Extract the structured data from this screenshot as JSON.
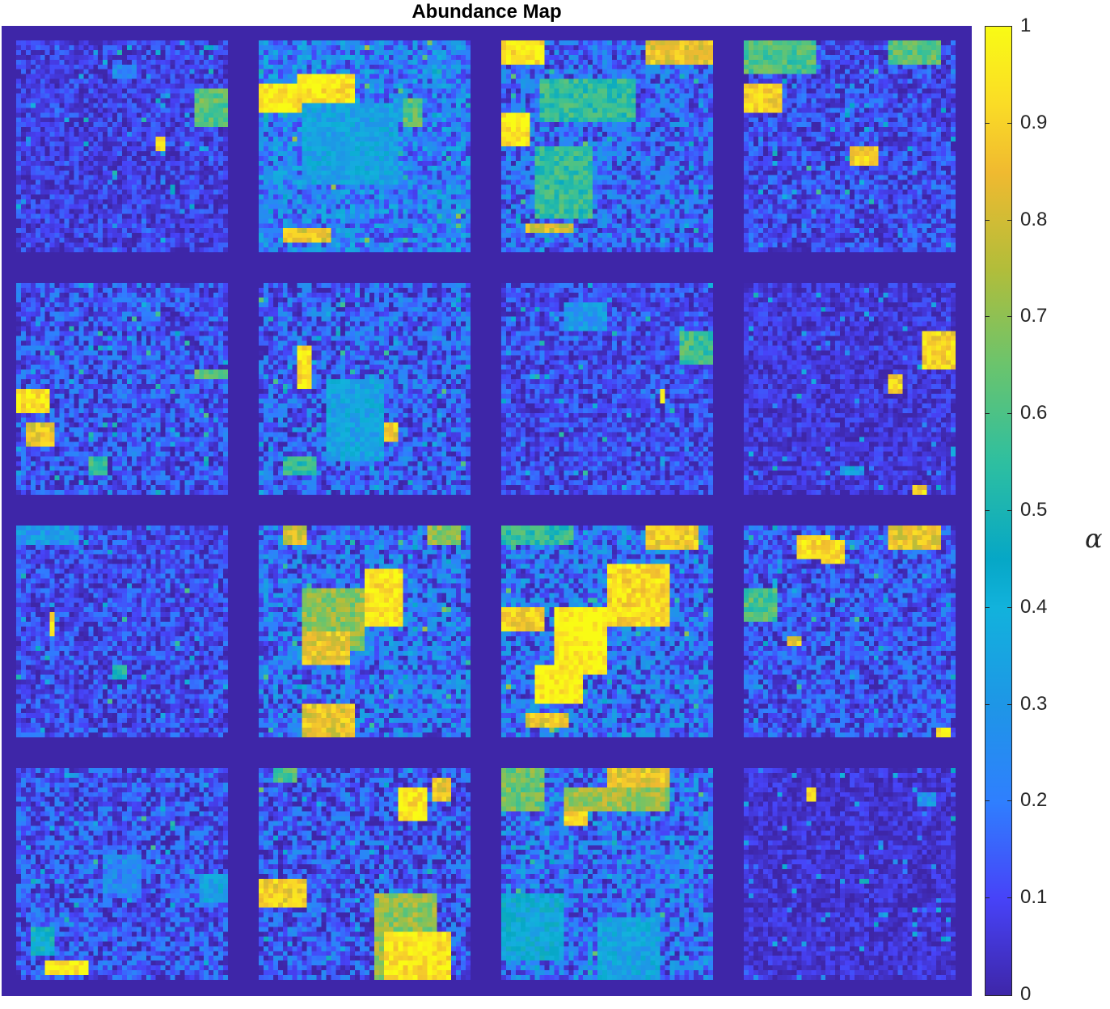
{
  "chart_data": {
    "type": "heatmap",
    "title": "Abundance Map",
    "layout": {
      "rows": 4,
      "cols": 4
    },
    "colormap": "parula",
    "clim": [
      0,
      1
    ],
    "colorbar": {
      "ticks": [
        0,
        0.1,
        0.2,
        0.3,
        0.4,
        0.5,
        0.6,
        0.7,
        0.8,
        0.9,
        1
      ],
      "tick_labels": [
        "0",
        "0.1",
        "0.2",
        "0.3",
        "0.4",
        "0.5",
        "0.6",
        "0.7",
        "0.8",
        "0.9",
        "1"
      ],
      "label": "α",
      "position": "right"
    },
    "background_value": 0,
    "tiles": [
      {
        "id": 1,
        "base": 0.08,
        "noise": 0.1,
        "patches": [
          [
            0.84,
            0.23,
            0.16,
            0.17,
            0.62
          ],
          [
            0.66,
            0.45,
            0.05,
            0.08,
            0.9
          ],
          [
            0.46,
            0.12,
            0.1,
            0.06,
            0.25
          ]
        ]
      },
      {
        "id": 2,
        "base": 0.22,
        "noise": 0.18,
        "patches": [
          [
            0.0,
            0.2,
            0.4,
            0.15,
            0.95
          ],
          [
            0.18,
            0.16,
            0.28,
            0.16,
            0.95
          ],
          [
            0.5,
            0.5,
            0.14,
            0.14,
            0.95
          ],
          [
            0.2,
            0.3,
            0.45,
            0.38,
            0.35
          ],
          [
            0.68,
            0.28,
            0.1,
            0.12,
            0.62
          ],
          [
            0.12,
            0.88,
            0.22,
            0.08,
            0.85
          ]
        ]
      },
      {
        "id": 3,
        "base": 0.16,
        "noise": 0.16,
        "patches": [
          [
            0.0,
            0.0,
            0.2,
            0.12,
            0.95
          ],
          [
            0.0,
            0.33,
            0.14,
            0.18,
            0.95
          ],
          [
            0.68,
            0.0,
            0.32,
            0.12,
            0.85
          ],
          [
            0.18,
            0.18,
            0.45,
            0.2,
            0.55
          ],
          [
            0.16,
            0.5,
            0.28,
            0.33,
            0.55
          ],
          [
            0.12,
            0.86,
            0.22,
            0.05,
            0.8
          ]
        ]
      },
      {
        "id": 4,
        "base": 0.1,
        "noise": 0.12,
        "patches": [
          [
            0.0,
            0.2,
            0.18,
            0.15,
            0.9
          ],
          [
            0.5,
            0.5,
            0.14,
            0.08,
            0.88
          ],
          [
            0.0,
            0.0,
            0.35,
            0.15,
            0.6
          ],
          [
            0.68,
            0.0,
            0.26,
            0.12,
            0.62
          ]
        ]
      },
      {
        "id": 5,
        "base": 0.12,
        "noise": 0.14,
        "patches": [
          [
            0.0,
            0.5,
            0.16,
            0.11,
            0.95
          ],
          [
            0.04,
            0.66,
            0.14,
            0.11,
            0.85
          ],
          [
            0.84,
            0.42,
            0.16,
            0.04,
            0.6
          ],
          [
            0.34,
            0.82,
            0.1,
            0.08,
            0.55
          ]
        ]
      },
      {
        "id": 6,
        "base": 0.14,
        "noise": 0.16,
        "patches": [
          [
            0.18,
            0.3,
            0.07,
            0.2,
            0.95
          ],
          [
            0.4,
            0.68,
            0.1,
            0.12,
            0.92
          ],
          [
            0.52,
            0.66,
            0.14,
            0.1,
            0.88
          ],
          [
            0.32,
            0.45,
            0.28,
            0.4,
            0.35
          ],
          [
            0.12,
            0.82,
            0.16,
            0.1,
            0.55
          ]
        ]
      },
      {
        "id": 7,
        "base": 0.1,
        "noise": 0.11,
        "patches": [
          [
            0.84,
            0.22,
            0.16,
            0.16,
            0.58
          ],
          [
            0.74,
            0.5,
            0.04,
            0.06,
            0.9
          ],
          [
            0.3,
            0.1,
            0.2,
            0.12,
            0.3
          ]
        ]
      },
      {
        "id": 8,
        "base": 0.06,
        "noise": 0.08,
        "patches": [
          [
            0.84,
            0.22,
            0.16,
            0.2,
            0.9
          ],
          [
            0.68,
            0.44,
            0.06,
            0.08,
            0.9
          ],
          [
            0.8,
            0.96,
            0.06,
            0.04,
            0.9
          ],
          [
            0.46,
            0.86,
            0.1,
            0.06,
            0.35
          ]
        ]
      },
      {
        "id": 9,
        "base": 0.1,
        "noise": 0.12,
        "patches": [
          [
            0.16,
            0.42,
            0.03,
            0.1,
            0.9
          ],
          [
            0.46,
            0.66,
            0.06,
            0.06,
            0.5
          ],
          [
            0.0,
            0.0,
            0.3,
            0.08,
            0.3
          ]
        ]
      },
      {
        "id": 10,
        "base": 0.18,
        "noise": 0.18,
        "patches": [
          [
            0.5,
            0.2,
            0.18,
            0.28,
            0.95
          ],
          [
            0.2,
            0.3,
            0.3,
            0.28,
            0.7
          ],
          [
            0.2,
            0.5,
            0.24,
            0.16,
            0.85
          ],
          [
            0.2,
            0.85,
            0.26,
            0.15,
            0.85
          ],
          [
            0.12,
            0.0,
            0.1,
            0.08,
            0.8
          ],
          [
            0.8,
            0.0,
            0.16,
            0.1,
            0.7
          ]
        ]
      },
      {
        "id": 11,
        "base": 0.18,
        "noise": 0.18,
        "patches": [
          [
            0.24,
            0.38,
            0.25,
            0.32,
            0.98
          ],
          [
            0.16,
            0.66,
            0.22,
            0.18,
            0.98
          ],
          [
            0.5,
            0.18,
            0.3,
            0.3,
            0.92
          ],
          [
            0.0,
            0.38,
            0.2,
            0.12,
            0.88
          ],
          [
            0.68,
            0.0,
            0.26,
            0.12,
            0.88
          ],
          [
            0.0,
            0.0,
            0.35,
            0.1,
            0.55
          ],
          [
            0.12,
            0.88,
            0.2,
            0.08,
            0.85
          ]
        ]
      },
      {
        "id": 12,
        "base": 0.12,
        "noise": 0.14,
        "patches": [
          [
            0.26,
            0.05,
            0.14,
            0.12,
            0.92
          ],
          [
            0.36,
            0.06,
            0.12,
            0.12,
            0.9
          ],
          [
            0.68,
            0.0,
            0.26,
            0.12,
            0.85
          ],
          [
            0.0,
            0.3,
            0.16,
            0.16,
            0.6
          ],
          [
            0.2,
            0.52,
            0.08,
            0.05,
            0.85
          ],
          [
            0.9,
            0.96,
            0.08,
            0.04,
            0.92
          ]
        ]
      },
      {
        "id": 13,
        "base": 0.12,
        "noise": 0.14,
        "patches": [
          [
            0.14,
            0.92,
            0.2,
            0.05,
            0.95
          ],
          [
            0.06,
            0.74,
            0.12,
            0.14,
            0.45
          ],
          [
            0.4,
            0.4,
            0.2,
            0.2,
            0.25
          ],
          [
            0.86,
            0.5,
            0.14,
            0.14,
            0.35
          ]
        ]
      },
      {
        "id": 14,
        "base": 0.12,
        "noise": 0.16,
        "patches": [
          [
            0.0,
            0.52,
            0.22,
            0.15,
            0.88
          ],
          [
            0.66,
            0.1,
            0.14,
            0.14,
            0.95
          ],
          [
            0.55,
            0.6,
            0.3,
            0.4,
            0.7
          ],
          [
            0.6,
            0.78,
            0.32,
            0.22,
            0.95
          ],
          [
            0.82,
            0.05,
            0.1,
            0.12,
            0.85
          ],
          [
            0.06,
            0.0,
            0.12,
            0.06,
            0.6
          ]
        ]
      },
      {
        "id": 15,
        "base": 0.18,
        "noise": 0.18,
        "patches": [
          [
            0.5,
            0.0,
            0.3,
            0.12,
            0.85
          ],
          [
            0.3,
            0.1,
            0.5,
            0.1,
            0.72
          ],
          [
            0.0,
            0.0,
            0.2,
            0.2,
            0.65
          ],
          [
            0.0,
            0.6,
            0.3,
            0.3,
            0.4
          ],
          [
            0.45,
            0.7,
            0.3,
            0.3,
            0.35
          ],
          [
            0.3,
            0.2,
            0.12,
            0.08,
            0.9
          ]
        ]
      },
      {
        "id": 16,
        "base": 0.05,
        "noise": 0.07,
        "patches": [
          [
            0.3,
            0.08,
            0.05,
            0.08,
            0.92
          ],
          [
            0.0,
            0.18,
            1.0,
            0.01,
            0.35
          ],
          [
            0.82,
            0.12,
            0.1,
            0.06,
            0.3
          ]
        ]
      }
    ]
  }
}
